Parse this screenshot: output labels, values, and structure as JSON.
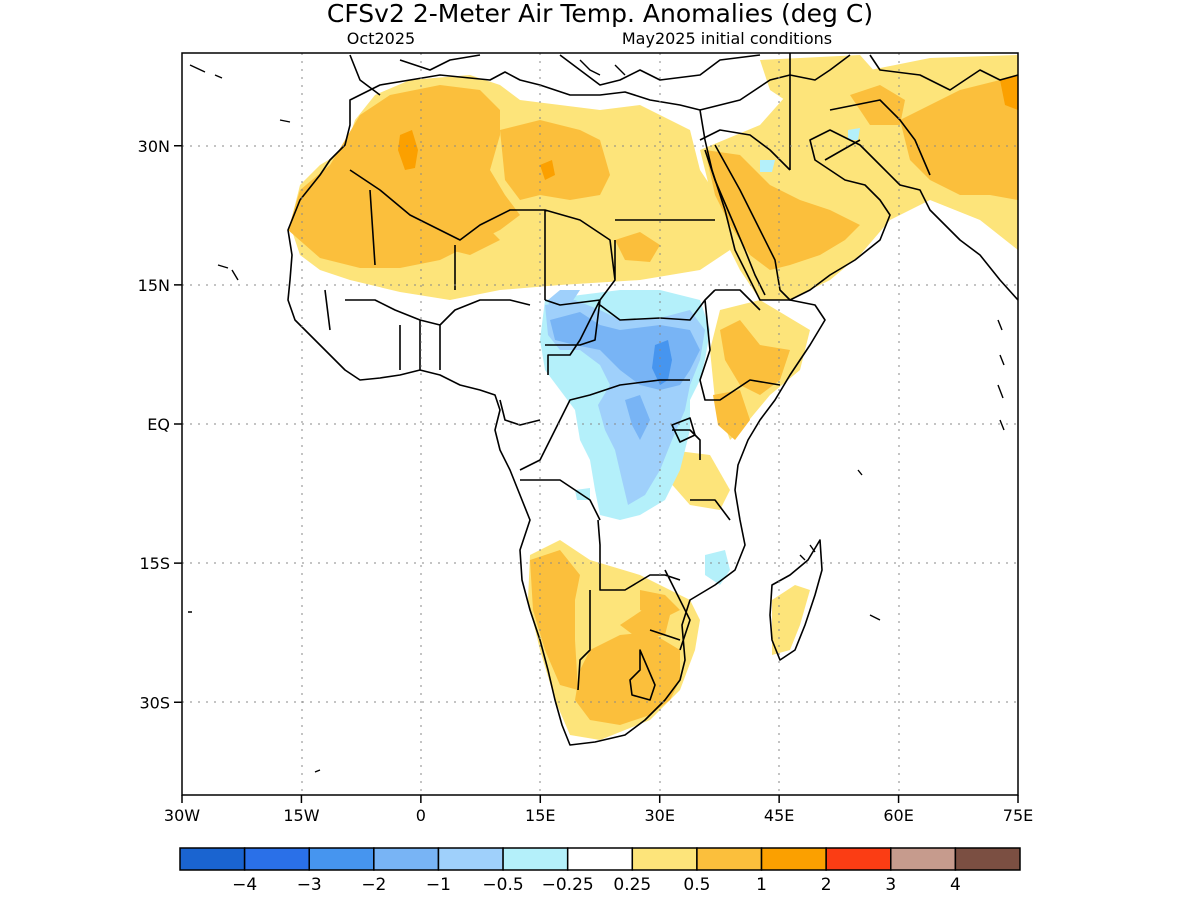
{
  "header": {
    "title": "CFSv2 2-Meter Air Temp. Anomalies (deg C)",
    "valid_month": "Oct2025",
    "init_conditions": "May2025 initial conditions"
  },
  "map": {
    "lat_labels": [
      "30N",
      "15N",
      "EQ",
      "15S",
      "30S"
    ],
    "lon_labels": [
      "30W",
      "15W",
      "0",
      "15E",
      "30E",
      "45E",
      "60E",
      "75E"
    ],
    "lat_values": [
      30,
      15,
      0,
      -15,
      -30
    ],
    "lon_values": [
      -30,
      -15,
      0,
      15,
      30,
      45,
      60,
      75
    ],
    "lat_range": [
      -40,
      40
    ],
    "lon_range": [
      -30,
      75
    ],
    "grid": "dotted"
  },
  "colorbar": {
    "colors": [
      "#1a64d0",
      "#2a70e8",
      "#4695ef",
      "#78b4f5",
      "#9fd0fb",
      "#b4f0fa",
      "#ffffff",
      "#fde47a",
      "#fbbf3c",
      "#fba000",
      "#fb3d14",
      "#c69b8d",
      "#7b4f42"
    ],
    "labels": [
      "-4",
      "-3",
      "-2",
      "-1",
      "-0.5",
      "-0.25",
      "0.25",
      "0.5",
      "1",
      "2",
      "3",
      "4"
    ]
  },
  "legend_colors": {
    "warm_light": "#fde47a",
    "warm_mid": "#fbbf3c",
    "warm_strong": "#fba000",
    "cool_light": "#b4f0fa",
    "cool_mid": "#9fd0fb",
    "cool_strong": "#78b4f5",
    "cool_deep": "#4695ef"
  }
}
